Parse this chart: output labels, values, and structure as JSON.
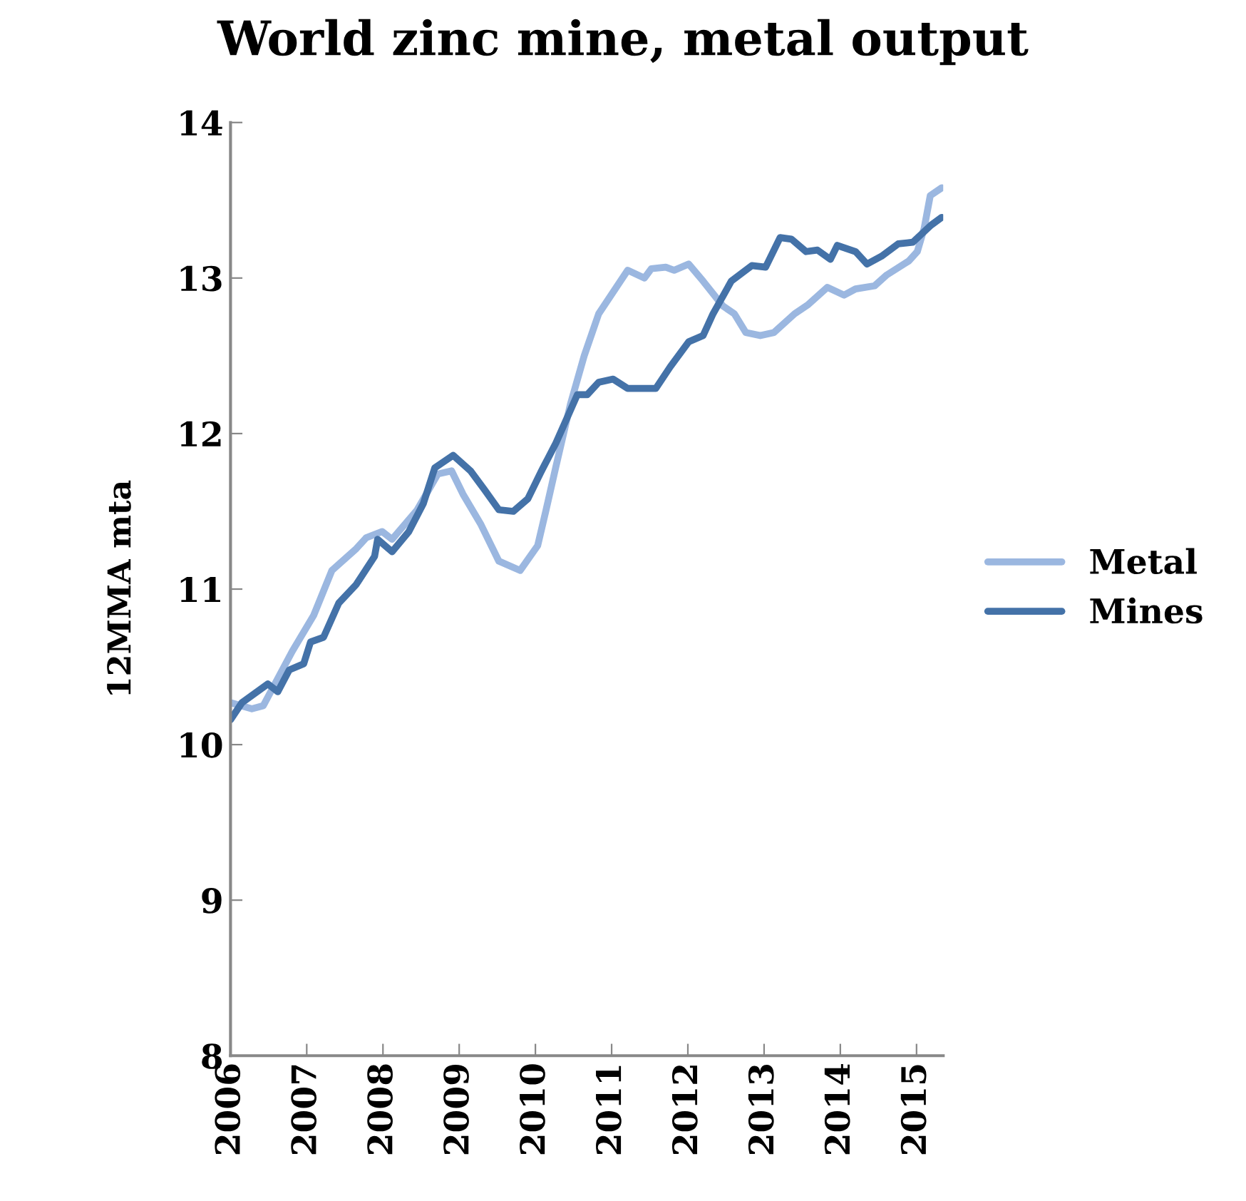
{
  "chart_data": {
    "type": "line",
    "title": "World zinc mine, metal output",
    "ylabel": "12MMA mta",
    "xlim": [
      2006,
      2015.35
    ],
    "xticks": [
      2006,
      2007,
      2008,
      2009,
      2010,
      2011,
      2012,
      2013,
      2014,
      2015
    ],
    "ylim": [
      8,
      14
    ],
    "yticks": [
      8,
      9,
      10,
      11,
      12,
      13,
      14
    ],
    "grid": false,
    "legend": "right",
    "marker": "none",
    "line_style": "solid",
    "series": [
      {
        "name": "Metal",
        "color": "#9bb7e0",
        "x": [
          2006.0,
          2006.28,
          2006.43,
          2006.81,
          2007.09,
          2007.33,
          2007.65,
          2007.78,
          2007.99,
          2008.12,
          2008.45,
          2008.72,
          2008.9,
          2009.05,
          2009.28,
          2009.52,
          2009.8,
          2010.03,
          2010.14,
          2010.27,
          2010.46,
          2010.64,
          2010.83,
          2011.21,
          2011.43,
          2011.52,
          2011.71,
          2011.82,
          2012.01,
          2012.2,
          2012.46,
          2012.61,
          2012.76,
          2012.95,
          2013.13,
          2013.4,
          2013.58,
          2013.83,
          2014.05,
          2014.2,
          2014.45,
          2014.61,
          2014.9,
          2015.01,
          2015.1,
          2015.18,
          2015.33
        ],
        "values": [
          10.27,
          10.23,
          10.25,
          10.6,
          10.83,
          11.12,
          11.26,
          11.33,
          11.37,
          11.32,
          11.51,
          11.74,
          11.76,
          11.61,
          11.42,
          11.18,
          11.12,
          11.28,
          11.51,
          11.79,
          12.19,
          12.5,
          12.77,
          13.05,
          13.0,
          13.06,
          13.07,
          13.05,
          13.09,
          12.98,
          12.82,
          12.77,
          12.65,
          12.63,
          12.65,
          12.77,
          12.83,
          12.94,
          12.89,
          12.93,
          12.95,
          13.02,
          13.11,
          13.17,
          13.32,
          13.53,
          13.58
        ]
      },
      {
        "name": "Mines",
        "color": "#4472a8",
        "x": [
          2006.0,
          2006.15,
          2006.49,
          2006.62,
          2006.77,
          2006.96,
          2007.05,
          2007.22,
          2007.42,
          2007.65,
          2007.89,
          2007.93,
          2008.12,
          2008.34,
          2008.53,
          2008.68,
          2008.92,
          2009.15,
          2009.33,
          2009.52,
          2009.71,
          2009.9,
          2010.08,
          2010.27,
          2010.55,
          2010.68,
          2010.83,
          2011.02,
          2011.21,
          2011.58,
          2011.77,
          2012.01,
          2012.2,
          2012.33,
          2012.57,
          2012.84,
          2013.02,
          2013.21,
          2013.36,
          2013.55,
          2013.7,
          2013.87,
          2013.96,
          2014.2,
          2014.35,
          2014.54,
          2014.76,
          2014.95,
          2015.19,
          2015.33
        ],
        "values": [
          10.16,
          10.27,
          10.39,
          10.34,
          10.48,
          10.52,
          10.66,
          10.69,
          10.91,
          11.03,
          11.21,
          11.32,
          11.24,
          11.37,
          11.55,
          11.78,
          11.86,
          11.76,
          11.64,
          11.51,
          11.5,
          11.58,
          11.76,
          11.94,
          12.25,
          12.25,
          12.33,
          12.35,
          12.29,
          12.29,
          12.43,
          12.59,
          12.63,
          12.77,
          12.98,
          13.08,
          13.07,
          13.26,
          13.25,
          13.17,
          13.18,
          13.12,
          13.21,
          13.17,
          13.09,
          13.14,
          13.22,
          13.23,
          13.34,
          13.39
        ]
      }
    ]
  }
}
